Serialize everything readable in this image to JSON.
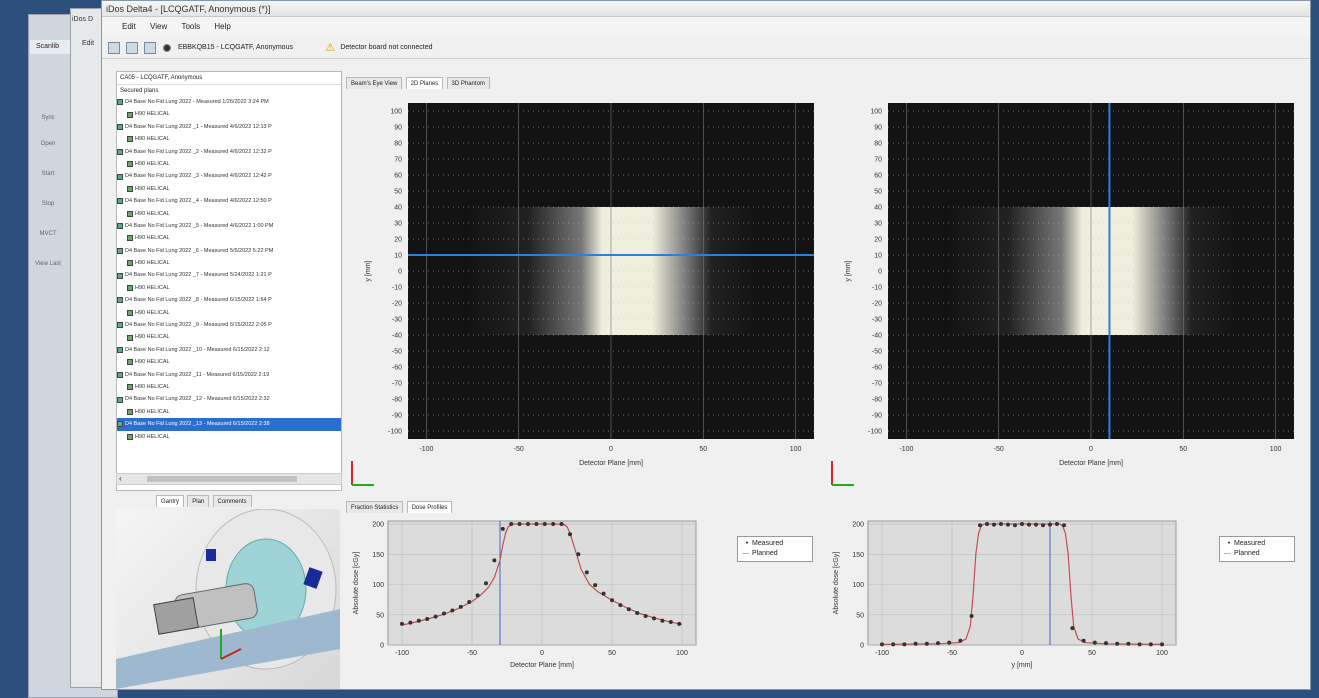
{
  "window": {
    "title": "iDos Delta4 - [LCQGATF, Anonymous (*)]",
    "bg_title": "iDos D"
  },
  "menu": {
    "items": [
      "Edit",
      "View",
      "Tools",
      "Help"
    ]
  },
  "toolbar": {
    "patient": "EBBKQB15 - LCQGATF, Anonymous",
    "warning": "Detector board not connected"
  },
  "background_app": {
    "labels": [
      "Sync",
      "Open",
      "Start",
      "Stop",
      "MVCT",
      "View Last"
    ],
    "tab": "Edit",
    "title": "Scanlib"
  },
  "tree": {
    "header": "CA05 - LCQGATF, Anonymous",
    "group": "Secured plans",
    "rows": [
      {
        "label": "D4 Base No Fid Lung 2022 - Measured  1/26/2022 3:24 PM",
        "sub": "H90 HELICAL"
      },
      {
        "label": "D4 Base No Fid Lung 2022 _1 - Measured  4/6/2022 12:13 P",
        "sub": "H90 HELICAL"
      },
      {
        "label": "D4 Base No Fid Lung 2022 _2 - Measured  4/6/2022 12:32 P",
        "sub": "H90 HELICAL"
      },
      {
        "label": "D4 Base No Fid Lung 2022 _3 - Measured  4/6/2022 12:42 P",
        "sub": "H90 HELICAL"
      },
      {
        "label": "D4 Base No Fid Lung 2022 _4 - Measured  4/6/2022 12:50 P",
        "sub": "H90 HELICAL"
      },
      {
        "label": "D4 Base No Fid Lung 2022 _5 - Measured  4/6/2022 1:00 PM",
        "sub": "H90 HELICAL"
      },
      {
        "label": "D4 Base No Fid Lung 2022 _6 - Measured  5/5/2022 5:22 PM",
        "sub": "H90 HELICAL"
      },
      {
        "label": "D4 Base No Fid Lung 2022 _7 - Measured  5/24/2022 1:21 P",
        "sub": "H90 HELICAL"
      },
      {
        "label": "D4 Base No Fid Lung 2022 _8 - Measured  6/15/2022 1:54 P",
        "sub": "H90 HELICAL"
      },
      {
        "label": "D4 Base No Fid Lung 2022 _9 - Measured  6/15/2022 2:05 P",
        "sub": "H90 HELICAL"
      },
      {
        "label": "D4 Base No Fid Lung 2022 _10 - Measured  6/15/2022 2:12",
        "sub": "H90 HELICAL"
      },
      {
        "label": "D4 Base No Fid Lung 2022 _11 - Measured  6/15/2022 2:19",
        "sub": "H90 HELICAL"
      },
      {
        "label": "D4 Base No Fid Lung 2022 _12 - Measured  6/15/2022 2:32",
        "sub": "H90 HELICAL"
      },
      {
        "label": "D4 Base No Fid Lung 2022 _13 - Measured  6/15/2022 2:38",
        "sub": "H90 HELICAL"
      }
    ]
  },
  "bottom_tabs": [
    "Gantry",
    "Plan",
    "Comments"
  ],
  "view_tabs": [
    "Beam's Eye View",
    "2D Planes",
    "3D Phantom"
  ],
  "profile_tabs": [
    "Fraction Statistics",
    "Dose Profiles"
  ],
  "colors": {
    "accent": "#2a6fcf",
    "cursor": "#2e7de0",
    "measured": "#333333",
    "planned": "#c0504d"
  },
  "planes": {
    "left": {
      "xlabel": "Detector Plane [mm]",
      "ylabel": "y [mm]",
      "xticks": [
        -100,
        -50,
        0,
        50,
        100
      ],
      "yticks": [
        100,
        90,
        80,
        70,
        60,
        50,
        40,
        30,
        20,
        10,
        0,
        -10,
        -20,
        -30,
        -40,
        -50,
        -60,
        -70,
        -80,
        -90,
        -100
      ],
      "cursor": {
        "y": 10
      }
    },
    "right": {
      "xlabel": "Detector Plane [mm]",
      "ylabel": "y [mm]",
      "xticks": [
        -100,
        -50,
        0,
        50,
        100
      ],
      "yticks": [
        100,
        90,
        80,
        70,
        60,
        50,
        40,
        30,
        20,
        10,
        0,
        -10,
        -20,
        -30,
        -40,
        -50,
        -60,
        -70,
        -80,
        -90,
        -100
      ],
      "cursor": {
        "x": 10
      }
    }
  },
  "chart_data": [
    {
      "type": "line",
      "xlabel": "Detector Plane [mm]",
      "ylabel": "Absolute dose [cGy]",
      "xlim": [
        -110,
        110
      ],
      "ylim": [
        0,
        205
      ],
      "xticks": [
        -100,
        -50,
        0,
        50,
        100
      ],
      "yticks": [
        0,
        50,
        100,
        150,
        200
      ],
      "cursor_x": -30,
      "legend": [
        "Measured",
        "Planned"
      ],
      "series": [
        {
          "name": "Measured",
          "x": [
            -100,
            -94,
            -88,
            -82,
            -76,
            -70,
            -64,
            -58,
            -52,
            -46,
            -40,
            -34,
            -28,
            -22,
            -16,
            -10,
            -4,
            2,
            8,
            14,
            20,
            26,
            32,
            38,
            44,
            50,
            56,
            62,
            68,
            74,
            80,
            86,
            92,
            98
          ],
          "y": [
            35,
            37,
            40,
            43,
            47,
            52,
            57,
            63,
            71,
            82,
            102,
            140,
            192,
            200,
            200,
            200,
            200,
            200,
            200,
            200,
            183,
            150,
            120,
            99,
            85,
            74,
            66,
            59,
            53,
            48,
            44,
            40,
            38,
            35
          ]
        },
        {
          "name": "Planned",
          "x": [
            -100,
            -90,
            -80,
            -70,
            -60,
            -50,
            -44,
            -38,
            -34,
            -30,
            -28,
            -26,
            -24,
            -20,
            -10,
            0,
            10,
            16,
            18,
            20,
            22,
            24,
            28,
            34,
            40,
            50,
            60,
            70,
            80,
            90,
            100
          ],
          "y": [
            33,
            38,
            44,
            51,
            60,
            72,
            82,
            96,
            112,
            140,
            165,
            185,
            196,
            200,
            200,
            200,
            200,
            199,
            195,
            185,
            170,
            155,
            125,
            100,
            88,
            74,
            62,
            52,
            45,
            39,
            34
          ]
        }
      ]
    },
    {
      "type": "line",
      "xlabel": "y [mm]",
      "ylabel": "Absolute dose [cGy]",
      "xlim": [
        -110,
        110
      ],
      "ylim": [
        0,
        205
      ],
      "xticks": [
        -100,
        -50,
        0,
        50,
        100
      ],
      "yticks": [
        0,
        50,
        100,
        150,
        200
      ],
      "cursor_x": 20,
      "legend": [
        "Measured",
        "Planned"
      ],
      "series": [
        {
          "name": "Measured",
          "x": [
            -100,
            -92,
            -84,
            -76,
            -68,
            -60,
            -52,
            -44,
            -36,
            -30,
            -25,
            -20,
            -15,
            -10,
            -5,
            0,
            5,
            10,
            15,
            20,
            25,
            30,
            36,
            44,
            52,
            60,
            68,
            76,
            84,
            92,
            100
          ],
          "y": [
            1,
            1,
            1,
            2,
            2,
            3,
            4,
            7,
            48,
            198,
            200,
            199,
            200,
            199,
            198,
            200,
            199,
            199,
            198,
            199,
            200,
            198,
            28,
            7,
            4,
            3,
            2,
            2,
            1,
            1,
            1
          ]
        },
        {
          "name": "Planned",
          "x": [
            -100,
            -60,
            -45,
            -40,
            -37,
            -35,
            -33,
            -31,
            -29,
            -27,
            0,
            27,
            29,
            31,
            33,
            35,
            37,
            40,
            45,
            60,
            100
          ],
          "y": [
            1,
            2,
            4,
            10,
            30,
            80,
            150,
            185,
            197,
            200,
            200,
            200,
            197,
            185,
            150,
            80,
            30,
            10,
            4,
            2,
            1
          ]
        }
      ]
    }
  ]
}
